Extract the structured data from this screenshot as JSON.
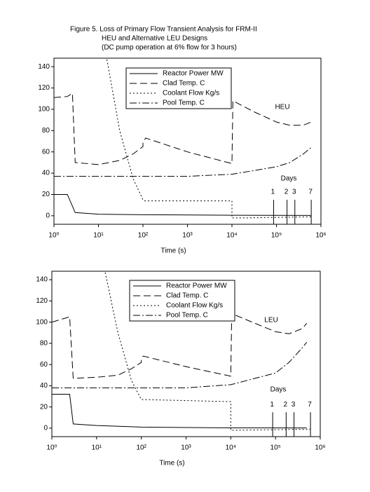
{
  "figure_title": [
    "Figure 5. Loss of Primary Flow Transient Analysis for FRM-II",
    "HEU and Alternative LEU Designs",
    "(DC pump operation at 6% flow for 3 hours)"
  ],
  "chart_data": [
    {
      "type": "line",
      "annotation": "HEU",
      "days_label": "Days",
      "xlabel": "Time (s)",
      "xscale": "log",
      "xlim": [
        1,
        1000000
      ],
      "ylim": [
        -8,
        148
      ],
      "xticks": [
        {
          "value": 1,
          "label": "10⁰"
        },
        {
          "value": 10,
          "label": "10¹"
        },
        {
          "value": 100,
          "label": "10²"
        },
        {
          "value": 1000,
          "label": "10³"
        },
        {
          "value": 10000,
          "label": "10⁴"
        },
        {
          "value": 100000,
          "label": "10⁵"
        },
        {
          "value": 1000000,
          "label": "10⁶"
        }
      ],
      "yticks": [
        0,
        20,
        40,
        60,
        80,
        100,
        120,
        140
      ],
      "day_markers": [
        {
          "value": 86400,
          "label": "1"
        },
        {
          "value": 172800,
          "label": "2"
        },
        {
          "value": 259200,
          "label": "3"
        },
        {
          "value": 604800,
          "label": "7"
        }
      ],
      "series": [
        {
          "name": "Reactor Power MW",
          "color": "#000000",
          "style": "solid",
          "x": [
            1,
            2,
            3,
            10,
            100,
            10000,
            600000
          ],
          "values": [
            20,
            20,
            3,
            1.5,
            1,
            0.5,
            0.3
          ]
        },
        {
          "name": "Clad Temp. C",
          "color": "#000000",
          "style": "dashed",
          "x": [
            1,
            2,
            2.6,
            3,
            10,
            30,
            60,
            100,
            100,
            115,
            1000,
            10000,
            10500,
            30000,
            100000,
            200000,
            400000,
            600000
          ],
          "values": [
            111,
            112,
            115,
            50,
            48,
            52,
            58,
            65,
            69,
            73,
            60,
            49,
            108,
            98,
            88,
            85,
            85,
            88
          ]
        },
        {
          "name": "Coolant Flow Kg/s",
          "color": "#000000",
          "style": "dotted",
          "x": [
            15,
            30,
            60,
            100,
            110,
            10000,
            10000,
            20000,
            600000
          ],
          "values": [
            150,
            80,
            35,
            15,
            14,
            14,
            -2,
            -2,
            -1
          ]
        },
        {
          "name": "Pool Temp. C",
          "color": "#000000",
          "style": "dashdot",
          "x": [
            1,
            1000,
            10000,
            100000,
            200000,
            400000,
            600000
          ],
          "values": [
            37,
            37,
            39,
            46,
            50,
            58,
            64
          ]
        }
      ]
    },
    {
      "type": "line",
      "annotation": "LEU",
      "days_label": "Days",
      "xlabel": "Time (s)",
      "xscale": "log",
      "xlim": [
        1,
        1000000
      ],
      "ylim": [
        -8,
        148
      ],
      "xticks": [
        {
          "value": 1,
          "label": "10⁰"
        },
        {
          "value": 10,
          "label": "10¹"
        },
        {
          "value": 100,
          "label": "10²"
        },
        {
          "value": 1000,
          "label": "10³"
        },
        {
          "value": 10000,
          "label": "10⁴"
        },
        {
          "value": 100000,
          "label": "10⁵"
        },
        {
          "value": 1000000,
          "label": "10⁶"
        }
      ],
      "yticks": [
        0,
        20,
        40,
        60,
        80,
        100,
        120,
        140
      ],
      "day_markers": [
        {
          "value": 86400,
          "label": "1"
        },
        {
          "value": 172800,
          "label": "2"
        },
        {
          "value": 259200,
          "label": "3"
        },
        {
          "value": 604800,
          "label": "7"
        }
      ],
      "series": [
        {
          "name": "Reactor Power MW",
          "color": "#000000",
          "style": "solid",
          "x": [
            1,
            2.5,
            3,
            10,
            100,
            10000,
            500000
          ],
          "values": [
            32,
            32,
            4,
            2.5,
            1,
            0.3,
            0.2
          ]
        },
        {
          "name": "Clad Temp. C",
          "color": "#000000",
          "style": "dashed",
          "x": [
            1,
            2.5,
            3,
            10,
            30,
            60,
            100,
            100,
            110,
            1000,
            10000,
            10500,
            30000,
            100000,
            200000,
            400000,
            500000
          ],
          "values": [
            100,
            105,
            47,
            48,
            50,
            56,
            62,
            65,
            68,
            58,
            49,
            108,
            100,
            91,
            89,
            94,
            99
          ]
        },
        {
          "name": "Coolant Flow Kg/s",
          "color": "#000000",
          "style": "dotted",
          "x": [
            15,
            30,
            60,
            100,
            10000,
            10000,
            600000
          ],
          "values": [
            150,
            90,
            45,
            27,
            25,
            -2,
            -1
          ]
        },
        {
          "name": "Pool Temp. C",
          "color": "#000000",
          "style": "dashdot",
          "x": [
            1,
            1000,
            10000,
            100000,
            200000,
            400000,
            500000
          ],
          "values": [
            38,
            38,
            41,
            52,
            62,
            76,
            81
          ]
        }
      ]
    }
  ]
}
